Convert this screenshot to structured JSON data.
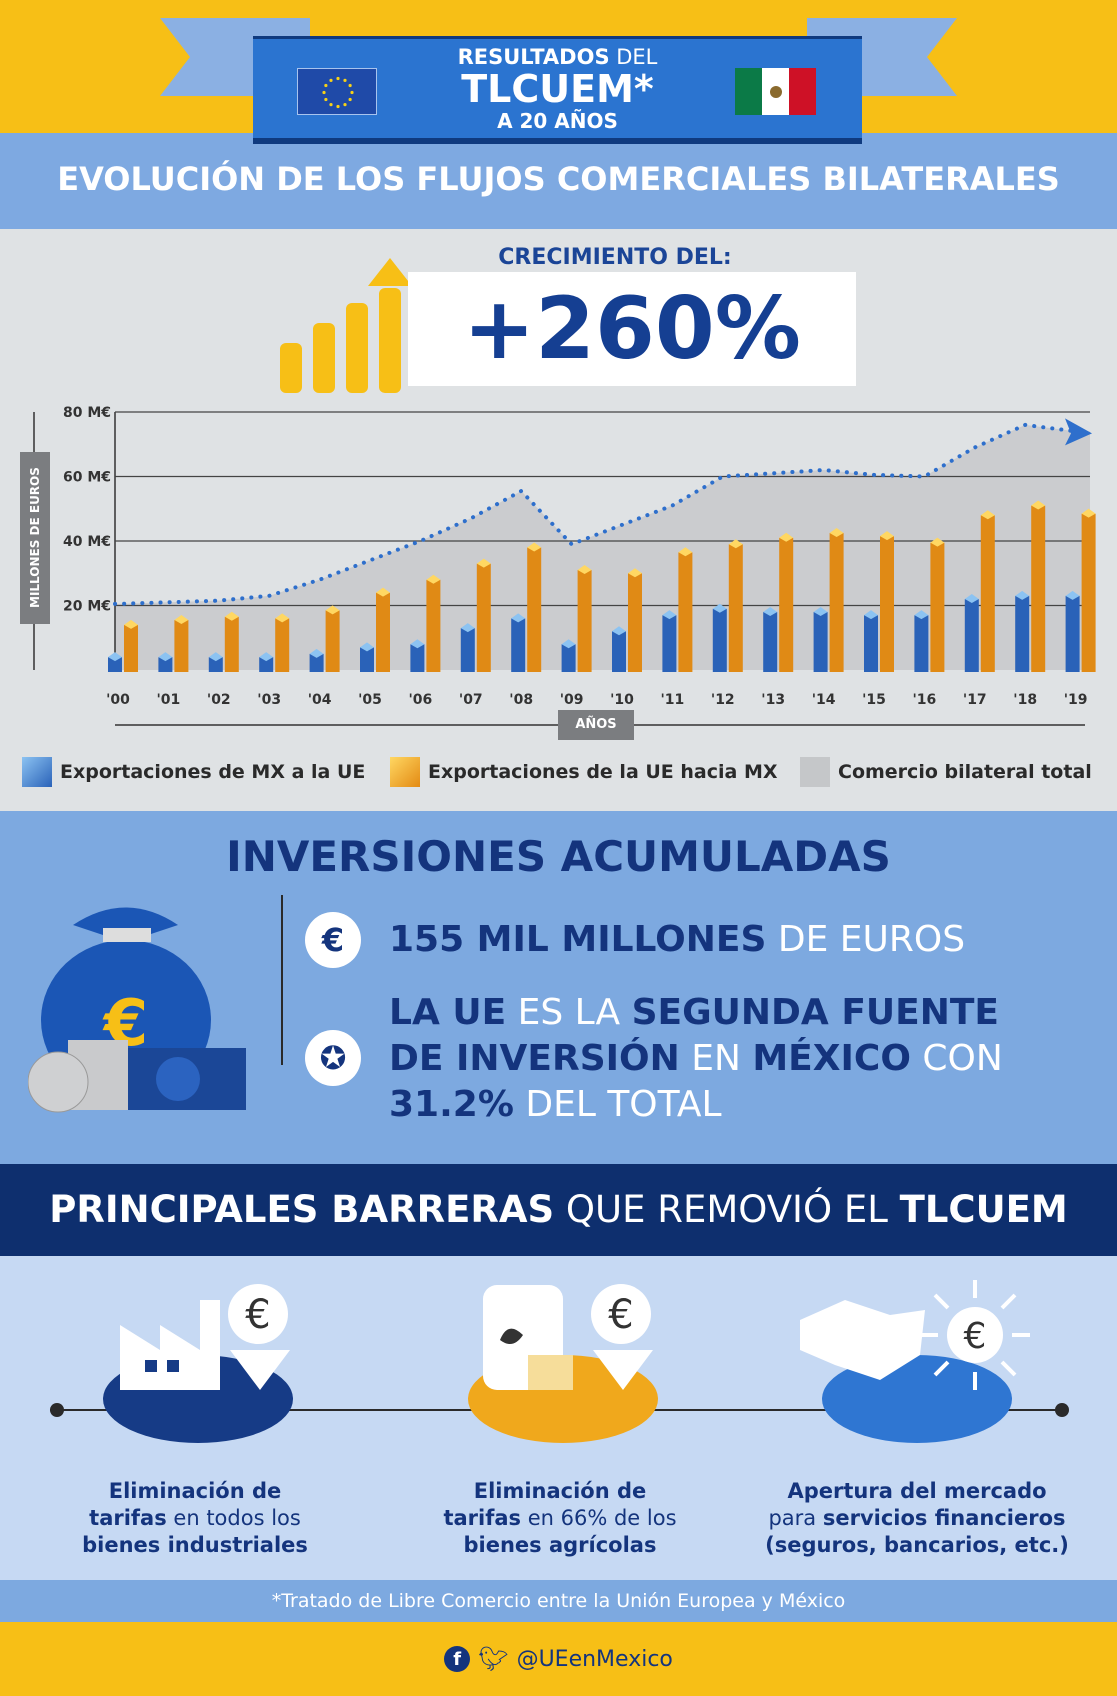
{
  "header": {
    "line1_bold": "RESULTADOS",
    "line1_regular": " DEL",
    "line2": "TLCUEM*",
    "line3": "A 20 AÑOS"
  },
  "section1": {
    "title": "EVOLUCIÓN DE LOS FLUJOS COMERCIALES BILATERALES",
    "growth_label": "CRECIMIENTO DEL:",
    "growth_value": "+260%"
  },
  "chart_data": {
    "type": "bar",
    "ylabel": "MILLONES DE EUROS",
    "xlabel": "AÑOS",
    "ylim": [
      0,
      80
    ],
    "yticks": [
      {
        "v": 20,
        "label": "20 M€"
      },
      {
        "v": 40,
        "label": "40 M€"
      },
      {
        "v": 60,
        "label": "60 M€"
      },
      {
        "v": 80,
        "label": "80 M€"
      }
    ],
    "grid": true,
    "legend": "bottom",
    "categories": [
      "'00",
      "'01",
      "'02",
      "'03",
      "'04",
      "'05",
      "'06",
      "'07",
      "'08",
      "'09",
      "'10",
      "'11",
      "'12",
      "'13",
      "'14",
      "'15",
      "'16",
      "'17",
      "'18",
      "'19"
    ],
    "series": [
      {
        "name": "Exportaciones de MX a la UE",
        "type": "bar",
        "color": "#3f86d6",
        "values": [
          4,
          4,
          4,
          4,
          5,
          7,
          8,
          13,
          16,
          8,
          12,
          17,
          19,
          18,
          18,
          17,
          17,
          22,
          23,
          23
        ]
      },
      {
        "name": "Exportaciones de la UE hacia MX",
        "type": "bar",
        "color": "#f0a81c",
        "values": [
          14,
          15.5,
          16.5,
          16,
          18.5,
          24,
          28,
          33,
          38,
          31,
          30,
          36.5,
          39,
          41,
          42.5,
          41.5,
          39.5,
          48,
          51,
          48.5
        ]
      },
      {
        "name": "Comercio bilateral total",
        "type": "area",
        "color": "#c5c7c9",
        "line_color": "#2e6fcc",
        "values": [
          20.5,
          21,
          21.5,
          23,
          28,
          34,
          40,
          47,
          55.5,
          39,
          45,
          51,
          60,
          61,
          62,
          60.5,
          60,
          69,
          76,
          74
        ]
      }
    ]
  },
  "investments": {
    "title": "INVERSIONES ACUMULADAS",
    "item1": {
      "icon": "euro-icon",
      "bold": "155 MIL MILLONES",
      "regular": " DE EUROS"
    },
    "item2": {
      "icon": "medal-icon",
      "p1": "LA UE",
      "p2": " ES LA ",
      "p3": "SEGUNDA FUENTE",
      "p4": "DE INVERSIÓN",
      "p5": " EN ",
      "p6": "MÉXICO",
      "p7": " CON",
      "p8": "31.2%",
      "p9": " DEL TOTAL"
    }
  },
  "barriers": {
    "title_bold1": "PRINCIPALES BARRERAS",
    "title_regular": " QUE REMOVIÓ EL ",
    "title_bold2": "TLCUEM",
    "items": [
      {
        "icon": "factory-icon",
        "l1": "Eliminación de",
        "l2b": "tarifas",
        "l2r": " en todos los",
        "l3": "bienes industriales",
        "color": "#163b86"
      },
      {
        "icon": "agriculture-icon",
        "l1": "Eliminación de",
        "l2b": "tarifas",
        "l2r": " en 66% de los",
        "l3": "bienes agrícolas",
        "color": "#f0a81c"
      },
      {
        "icon": "handshake-icon",
        "l1": "Apertura del mercado",
        "l2r": "para ",
        "l2b": "servicios financieros",
        "l3": "(seguros, bancarios, etc.)",
        "color": "#2f76d2"
      }
    ]
  },
  "footer": {
    "footnote": "*Tratado de Libre Comercio entre la Unión Europea y México",
    "handle": "@UEenMexico"
  },
  "colors": {
    "yellow": "#f7bf16",
    "light_blue": "#7da9e0",
    "navy": "#0e2f6e",
    "blue": "#2b74d0"
  }
}
